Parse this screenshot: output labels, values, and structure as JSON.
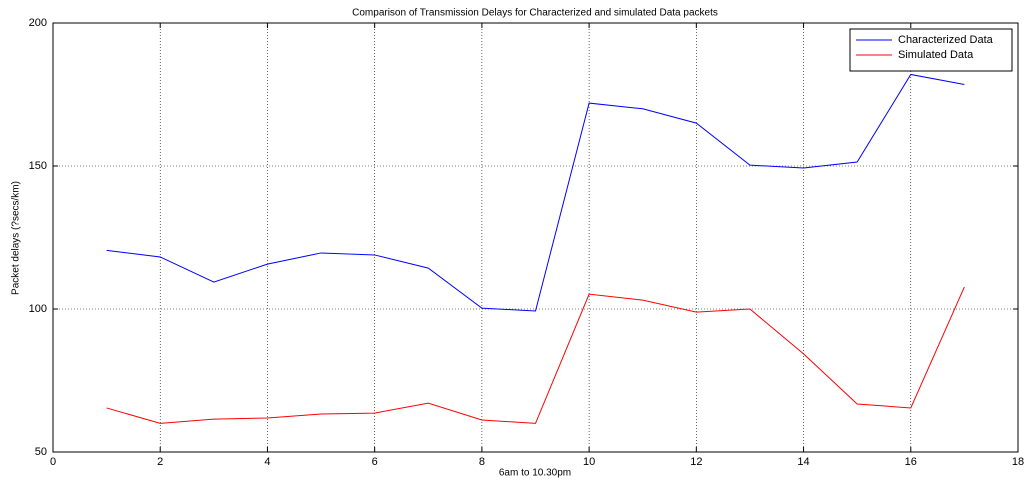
{
  "chart_data": {
    "type": "line",
    "title": "Comparison of Transmission Delays for Characterized and simulated Data packets",
    "x_label": "6am to 10.30pm",
    "y_label": "Packet delays (?secs/km)",
    "x": [
      1,
      2,
      3,
      4,
      5,
      6,
      7,
      8,
      9,
      10,
      11,
      12,
      13,
      14,
      15,
      16,
      17
    ],
    "series": [
      {
        "name": "Characterized Data",
        "color": "#0000ff",
        "values": [
          120.5,
          118.2,
          109.4,
          115.7,
          119.6,
          118.9,
          114.3,
          100.3,
          99.3,
          172,
          170,
          165,
          150.3,
          149.3,
          151.4,
          182,
          178.5
        ]
      },
      {
        "name": "Simulated Data",
        "color": "#ff0000",
        "values": [
          65.4,
          60,
          61.5,
          61.9,
          63.3,
          63.6,
          67.1,
          61.2,
          60,
          105.2,
          103.1,
          98.9,
          100,
          84.3,
          66.8,
          65.4,
          107.7
        ]
      }
    ],
    "xlim": [
      0,
      18
    ],
    "xticks": [
      0,
      2,
      4,
      6,
      8,
      10,
      12,
      14,
      16,
      18
    ],
    "ylim": [
      50,
      200
    ],
    "yticks": [
      50,
      100,
      150,
      200
    ],
    "grid": true,
    "legend": "northeast"
  }
}
